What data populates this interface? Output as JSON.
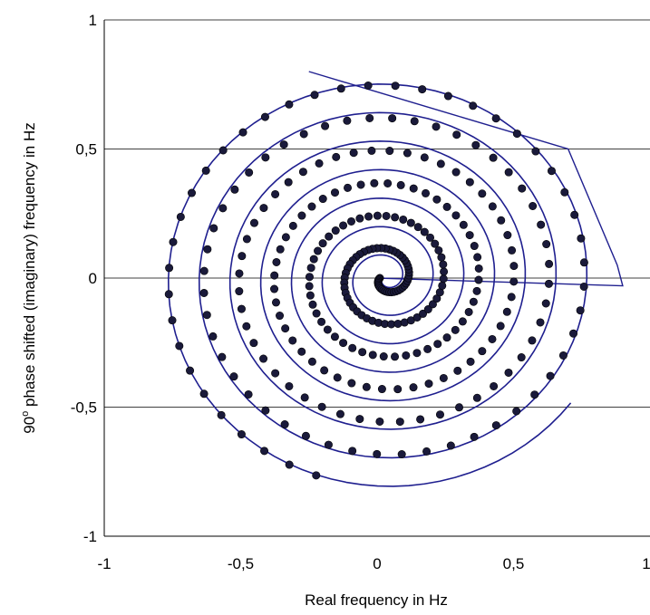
{
  "chart_data": {
    "type": "scatter",
    "title": "",
    "xlabel": "Real frequency in Hz",
    "ylabel_parts": {
      "pre": "90",
      "sup": "o",
      "post": " phase shifted (imaginary)  frequency in  Hz"
    },
    "xlim": [
      -1,
      1
    ],
    "ylim": [
      -1,
      1
    ],
    "x_ticks": [
      {
        "value": -1,
        "label": "-1"
      },
      {
        "value": -0.5,
        "label": "-0,5"
      },
      {
        "value": 0,
        "label": "0"
      },
      {
        "value": 0.5,
        "label": "0,5"
      },
      {
        "value": 1,
        "label": "1"
      }
    ],
    "y_ticks": [
      {
        "value": 1,
        "label": "1"
      },
      {
        "value": 0.5,
        "label": "0,5"
      },
      {
        "value": 0,
        "label": "0"
      },
      {
        "value": -0.5,
        "label": "-0,5"
      },
      {
        "value": -1,
        "label": "-1"
      }
    ],
    "grid": {
      "horizontal": true,
      "vertical": false
    },
    "series": [
      {
        "style": "line",
        "color": "#1f1f8f",
        "description_shape": "spiral",
        "spiral": {
          "turns": 7.4,
          "radius_start": 0.005,
          "radius_end": 0.84,
          "center": [
            0.03,
            0.0
          ],
          "samples_per_turn": 90
        },
        "extra_points": [
          [
            0.0,
            0.0
          ],
          [
            0.9,
            -0.03
          ],
          [
            0.88,
            0.05
          ],
          [
            0.7,
            0.5
          ],
          [
            -0.25,
            0.8
          ]
        ]
      },
      {
        "style": "markers",
        "color": "#1a1a3a",
        "spiral": {
          "turns": 6.2,
          "radius_start": 0.02,
          "radius_end": 0.82,
          "center": [
            0.03,
            0.0
          ],
          "points_per_turn": 48
        }
      }
    ]
  }
}
